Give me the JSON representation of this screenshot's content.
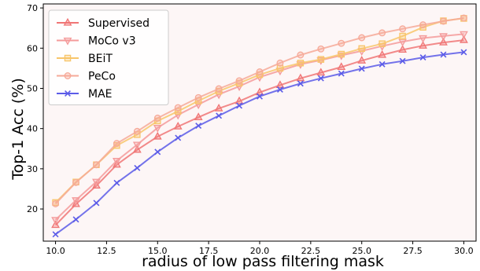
{
  "chart_data": {
    "type": "line",
    "title": "",
    "xlabel": "radius of low pass filtering mask",
    "ylabel": "Top-1 Acc (%)",
    "xlim": [
      9.4,
      30.6
    ],
    "ylim": [
      12,
      71
    ],
    "xticks": [
      10.0,
      12.5,
      15.0,
      17.5,
      20.0,
      22.5,
      25.0,
      27.5,
      30.0
    ],
    "xtick_labels": [
      "10.0",
      "12.5",
      "15.0",
      "17.5",
      "20.0",
      "22.5",
      "25.0",
      "27.5",
      "30.0"
    ],
    "yticks": [
      20,
      30,
      40,
      50,
      60,
      70
    ],
    "ytick_labels": [
      "20",
      "30",
      "40",
      "50",
      "60",
      "70"
    ],
    "grid": false,
    "background": "#fdf6f6",
    "legend_position": "top-left",
    "x": [
      10,
      11,
      12,
      13,
      14,
      15,
      16,
      17,
      18,
      19,
      20,
      21,
      22,
      23,
      24,
      25,
      26,
      27,
      28,
      29,
      30
    ],
    "series": [
      {
        "name": "Supervised",
        "color": "#f07575",
        "marker": "triangle-up",
        "values": [
          16.0,
          21.2,
          25.8,
          31.0,
          34.7,
          38.0,
          40.5,
          42.8,
          45.0,
          46.8,
          49.0,
          50.8,
          52.5,
          53.9,
          55.3,
          56.9,
          58.3,
          59.6,
          60.6,
          61.4,
          62.0
        ]
      },
      {
        "name": "MoCo v3",
        "color": "#f49a9a",
        "marker": "triangle-down",
        "values": [
          17.3,
          22.2,
          26.8,
          32.0,
          36.0,
          40.2,
          43.4,
          46.0,
          48.5,
          50.5,
          52.8,
          54.4,
          56.0,
          57.0,
          58.2,
          59.3,
          60.5,
          61.6,
          62.5,
          63.0,
          63.5
        ]
      },
      {
        "name": "BEiT",
        "color": "#f8c56a",
        "marker": "square",
        "values": [
          21.6,
          26.7,
          31.0,
          35.8,
          38.5,
          41.9,
          44.3,
          46.9,
          49.3,
          51.3,
          53.4,
          55.0,
          56.3,
          57.2,
          58.5,
          59.9,
          61.1,
          63.0,
          65.2,
          66.8,
          67.4
        ]
      },
      {
        "name": "PeCo",
        "color": "#f6a998",
        "marker": "circle",
        "values": [
          21.3,
          26.6,
          31.0,
          36.3,
          39.3,
          42.6,
          45.2,
          47.7,
          49.9,
          51.9,
          54.1,
          56.3,
          58.3,
          59.8,
          61.2,
          62.6,
          63.8,
          64.8,
          65.8,
          66.7,
          67.5
        ]
      },
      {
        "name": "MAE",
        "color": "#5b5be8",
        "marker": "x",
        "values": [
          13.7,
          17.4,
          21.5,
          26.5,
          30.2,
          34.2,
          37.7,
          40.7,
          43.2,
          45.7,
          48.0,
          49.7,
          51.2,
          52.5,
          53.7,
          54.9,
          56.0,
          56.8,
          57.7,
          58.4,
          59.0
        ]
      }
    ]
  }
}
